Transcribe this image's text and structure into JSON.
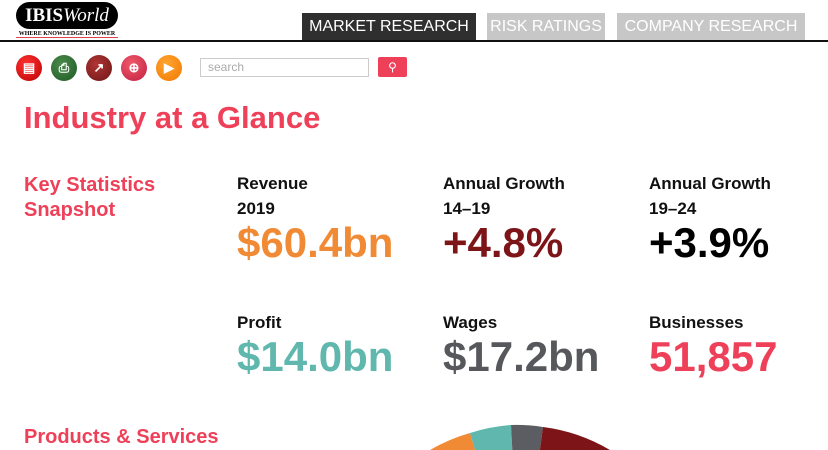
{
  "header": {
    "logo_text_bold": "IBIS",
    "logo_text_italic": "World",
    "tagline": "Where knowledge is power",
    "tabs": [
      {
        "label": "MARKET RESEARCH",
        "active": true
      },
      {
        "label": "RISK RATINGS"
      },
      {
        "label": "COMPANY RESEARCH"
      }
    ]
  },
  "toolbar": {
    "icons": [
      "pdf-icon",
      "print-icon",
      "chart-icon",
      "zoom-icon",
      "video-icon"
    ],
    "search_placeholder": "search"
  },
  "page": {
    "title": "Industry at a Glance",
    "key_stats_heading_1": "Key Statistics",
    "key_stats_heading_2": "Snapshot",
    "products_heading": "Products & Services"
  },
  "stats": [
    {
      "label1": "Revenue",
      "label2": "2019",
      "value": "$60.4bn",
      "color": "#f08a35"
    },
    {
      "label1": "Annual Growth",
      "label2": "14–19",
      "value": "+4.8%",
      "color": "#7d1418"
    },
    {
      "label1": "Annual Growth",
      "label2": "19–24",
      "value": "+3.9%",
      "color": "#000000"
    },
    {
      "label1": "Profit",
      "value": "$14.0bn",
      "color": "#5fb7ad"
    },
    {
      "label1": "Wages",
      "value": "$17.2bn",
      "color": "#57585c"
    },
    {
      "label1": "Businesses",
      "value": "51,857",
      "color": "#ee4059"
    }
  ],
  "pie_colors": [
    "#f08a35",
    "#5fb7ad",
    "#5c5d62",
    "#7d1418"
  ]
}
